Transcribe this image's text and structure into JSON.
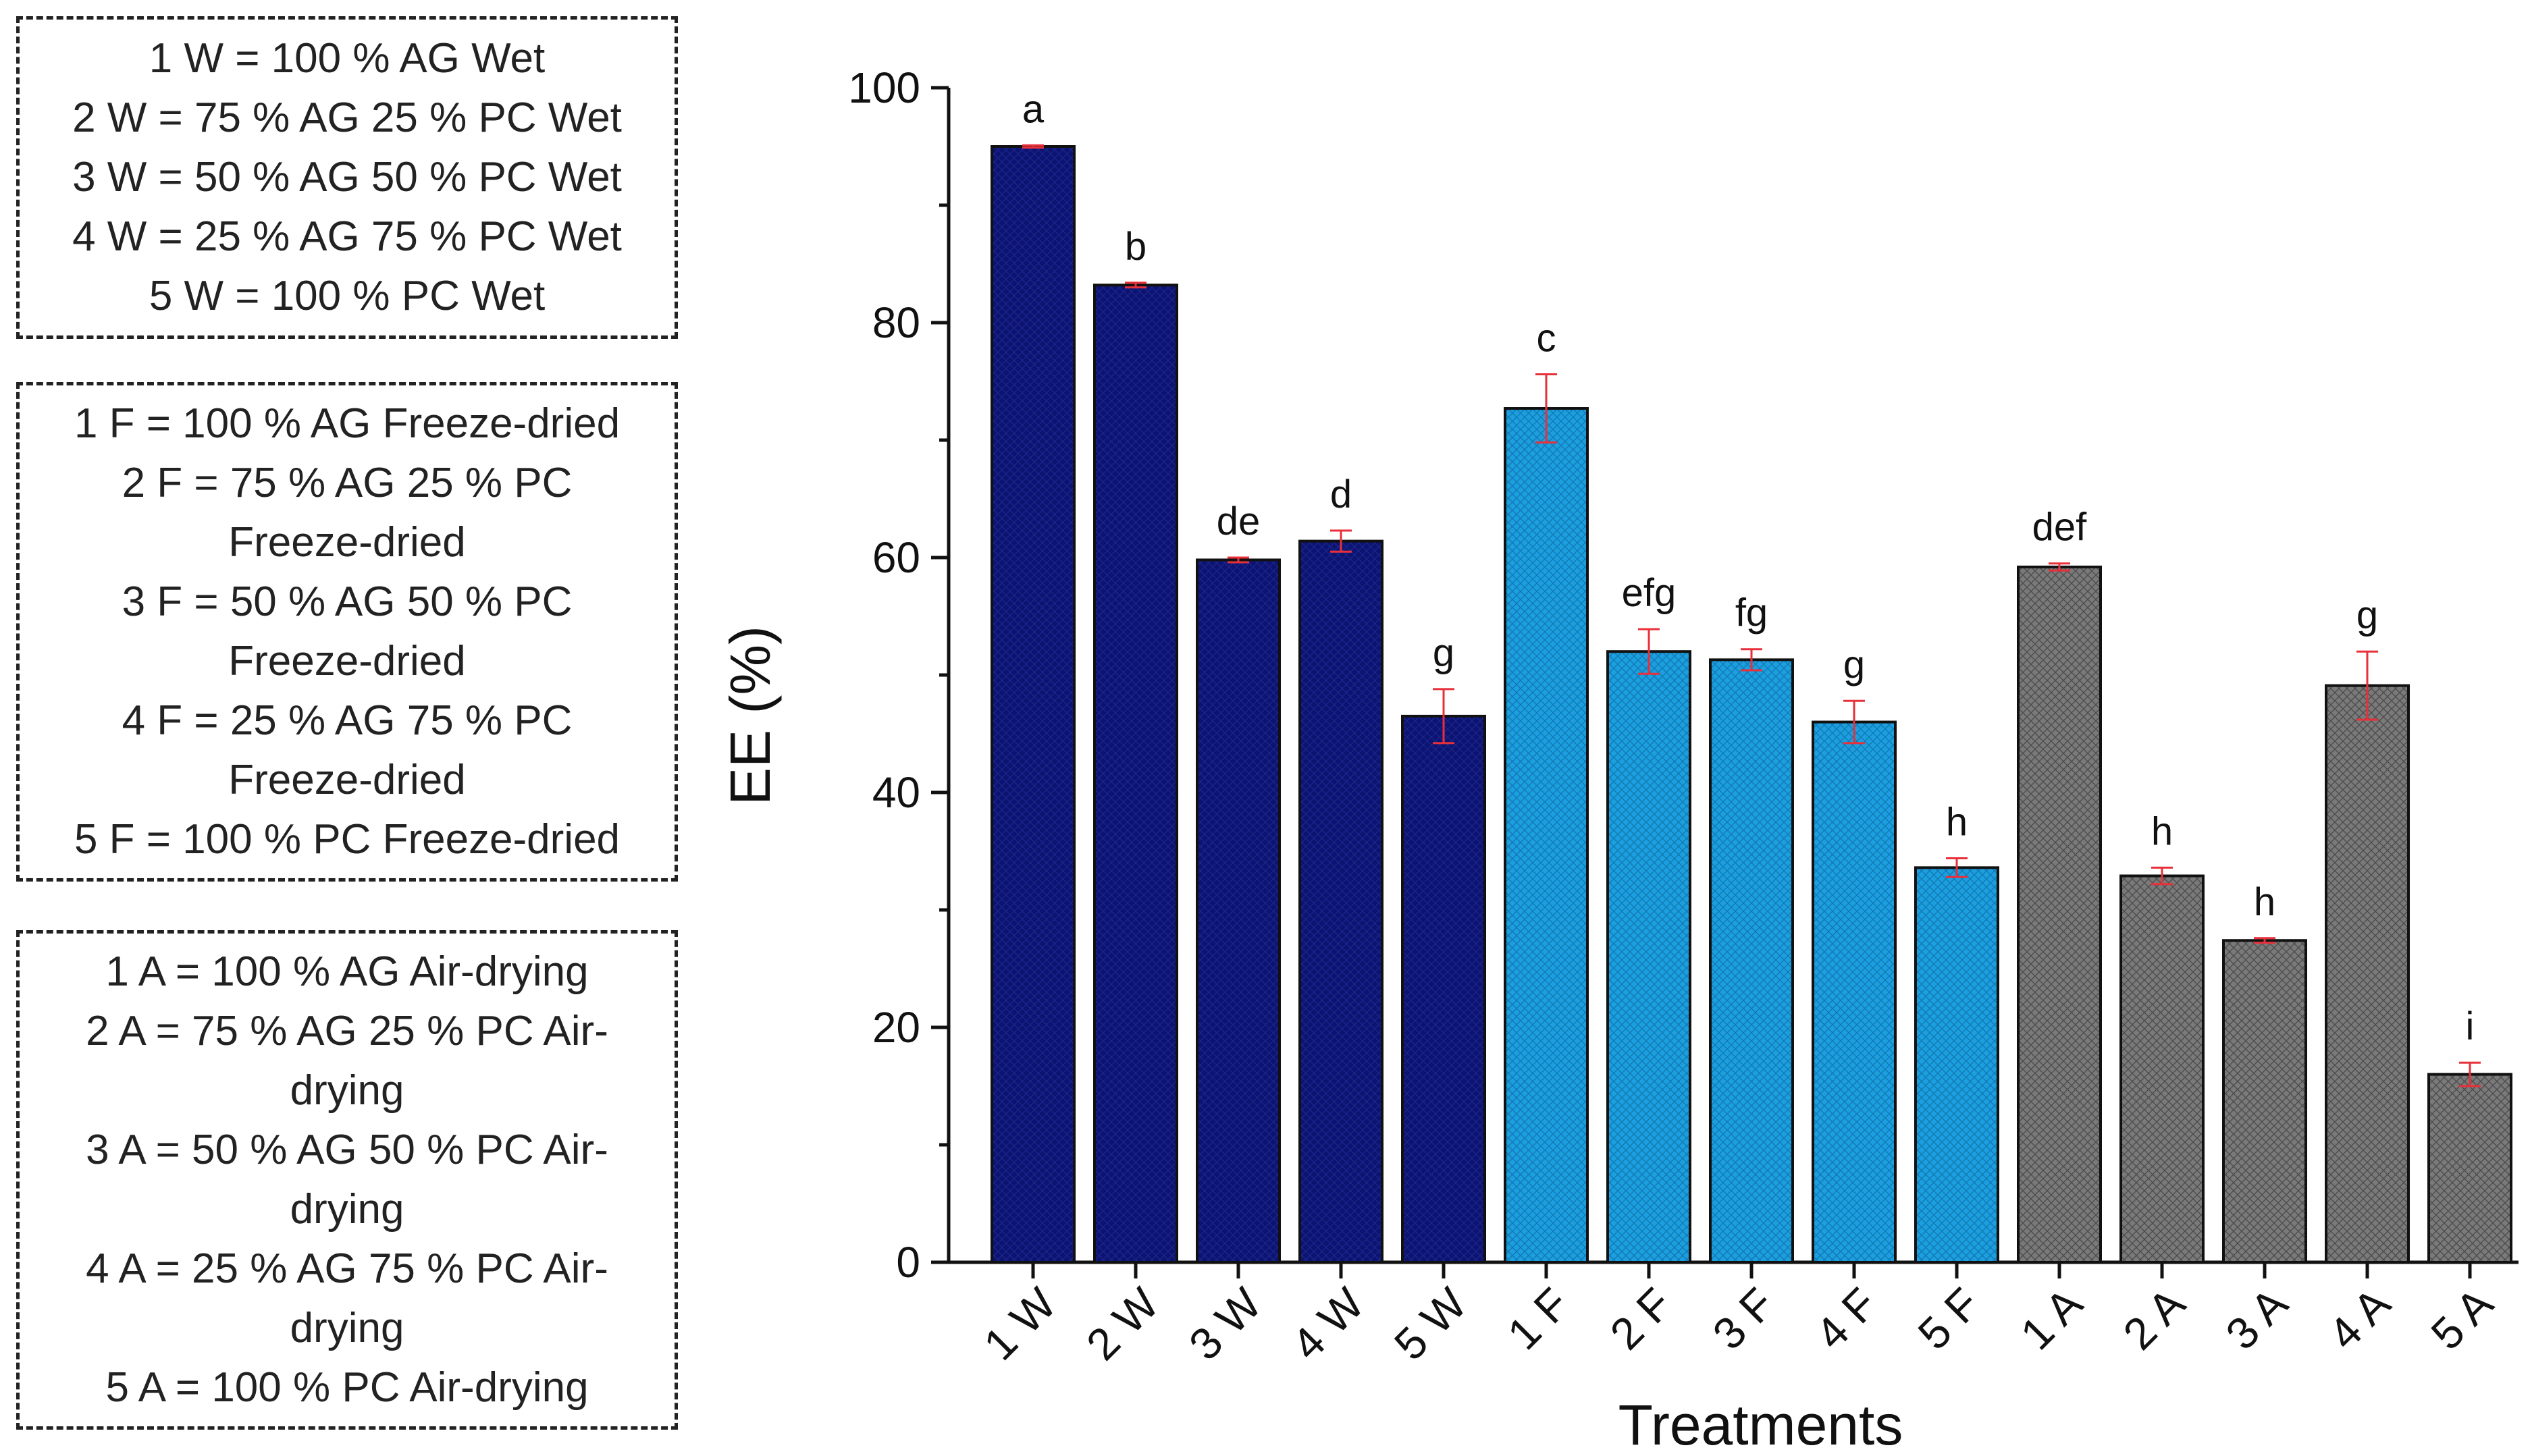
{
  "legends": [
    {
      "id": "wet",
      "lines": [
        "1 W = 100 % AG Wet",
        "2 W = 75 % AG 25 % PC Wet",
        "3 W = 50 % AG 50 % PC Wet",
        "4 W = 25 % AG 75 % PC Wet",
        "5 W = 100 % PC Wet"
      ]
    },
    {
      "id": "freeze",
      "lines": [
        "1 F = 100 % AG Freeze-dried",
        "2 F = 75 % AG 25 % PC",
        "Freeze-dried",
        "3 F = 50 % AG 50 % PC",
        "Freeze-dried",
        "4 F = 25 % AG 75 % PC",
        "Freeze-dried",
        "5 F = 100 % PC Freeze-dried"
      ]
    },
    {
      "id": "air",
      "lines": [
        "1 A = 100 % AG Air-drying",
        "2 A = 75 % AG 25 % PC Air-",
        "drying",
        "3 A = 50 % AG 50 % PC Air-",
        "drying",
        "4 A = 25 % AG 75 % PC Air-",
        "drying",
        "5 A = 100 % PC Air-drying"
      ]
    }
  ],
  "chart_data": {
    "type": "bar",
    "title": "",
    "xlabel": "Treatments",
    "ylabel": "EE (%)",
    "ylim": [
      0,
      100
    ],
    "yticks": [
      0,
      20,
      40,
      60,
      80,
      100
    ],
    "grid": false,
    "categories": [
      "1 W",
      "2 W",
      "3 W",
      "4 W",
      "5 W",
      "1 F",
      "2 F",
      "3 F",
      "4 F",
      "5 F",
      "1 A",
      "2 A",
      "3 A",
      "4 A",
      "5 A"
    ],
    "values": [
      95.0,
      83.2,
      59.8,
      61.4,
      46.5,
      72.7,
      52.0,
      51.3,
      46.0,
      33.6,
      59.2,
      32.9,
      27.4,
      49.1,
      16.0
    ],
    "errors": [
      0.1,
      0.2,
      0.2,
      0.9,
      2.3,
      2.9,
      1.9,
      0.9,
      1.8,
      0.8,
      0.3,
      0.7,
      0.2,
      2.9,
      1.0
    ],
    "significance_letters": [
      "a",
      "b",
      "de",
      "d",
      "g",
      "c",
      "efg",
      "fg",
      "g",
      "h",
      "def",
      "h",
      "h",
      "g",
      "i"
    ],
    "groups": [
      "wet",
      "wet",
      "wet",
      "wet",
      "wet",
      "freeze",
      "freeze",
      "freeze",
      "freeze",
      "freeze",
      "air",
      "air",
      "air",
      "air",
      "air"
    ],
    "group_colors": {
      "wet": "#0d1470",
      "freeze": "#1c9fe0",
      "air": "#7a7a7a"
    },
    "error_bar_color": "#e8303a"
  }
}
